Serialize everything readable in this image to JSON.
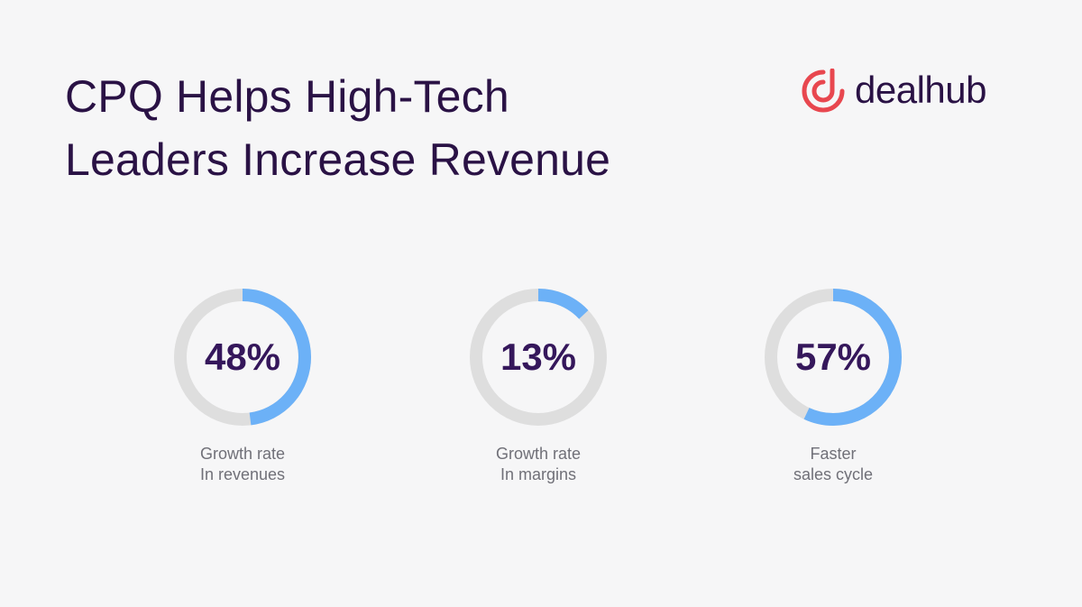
{
  "header": {
    "title_line1": "CPQ Helps High-Tech",
    "title_line2": "Leaders Increase Revenue"
  },
  "logo": {
    "text": "dealhub",
    "mark_color": "#e8474f",
    "text_color": "#2a1245"
  },
  "colors": {
    "background": "#f6f6f7",
    "ring_track": "#dedede",
    "ring_fill": "#6cb1f7",
    "value_text": "#35175b",
    "caption_text": "#707078"
  },
  "stats": [
    {
      "value": "48%",
      "percent": 48,
      "caption_line1": "Growth rate",
      "caption_line2": "In revenues"
    },
    {
      "value": "13%",
      "percent": 13,
      "caption_line1": "Growth rate",
      "caption_line2": "In margins"
    },
    {
      "value": "57%",
      "percent": 57,
      "caption_line1": "Faster",
      "caption_line2": "sales cycle"
    }
  ]
}
